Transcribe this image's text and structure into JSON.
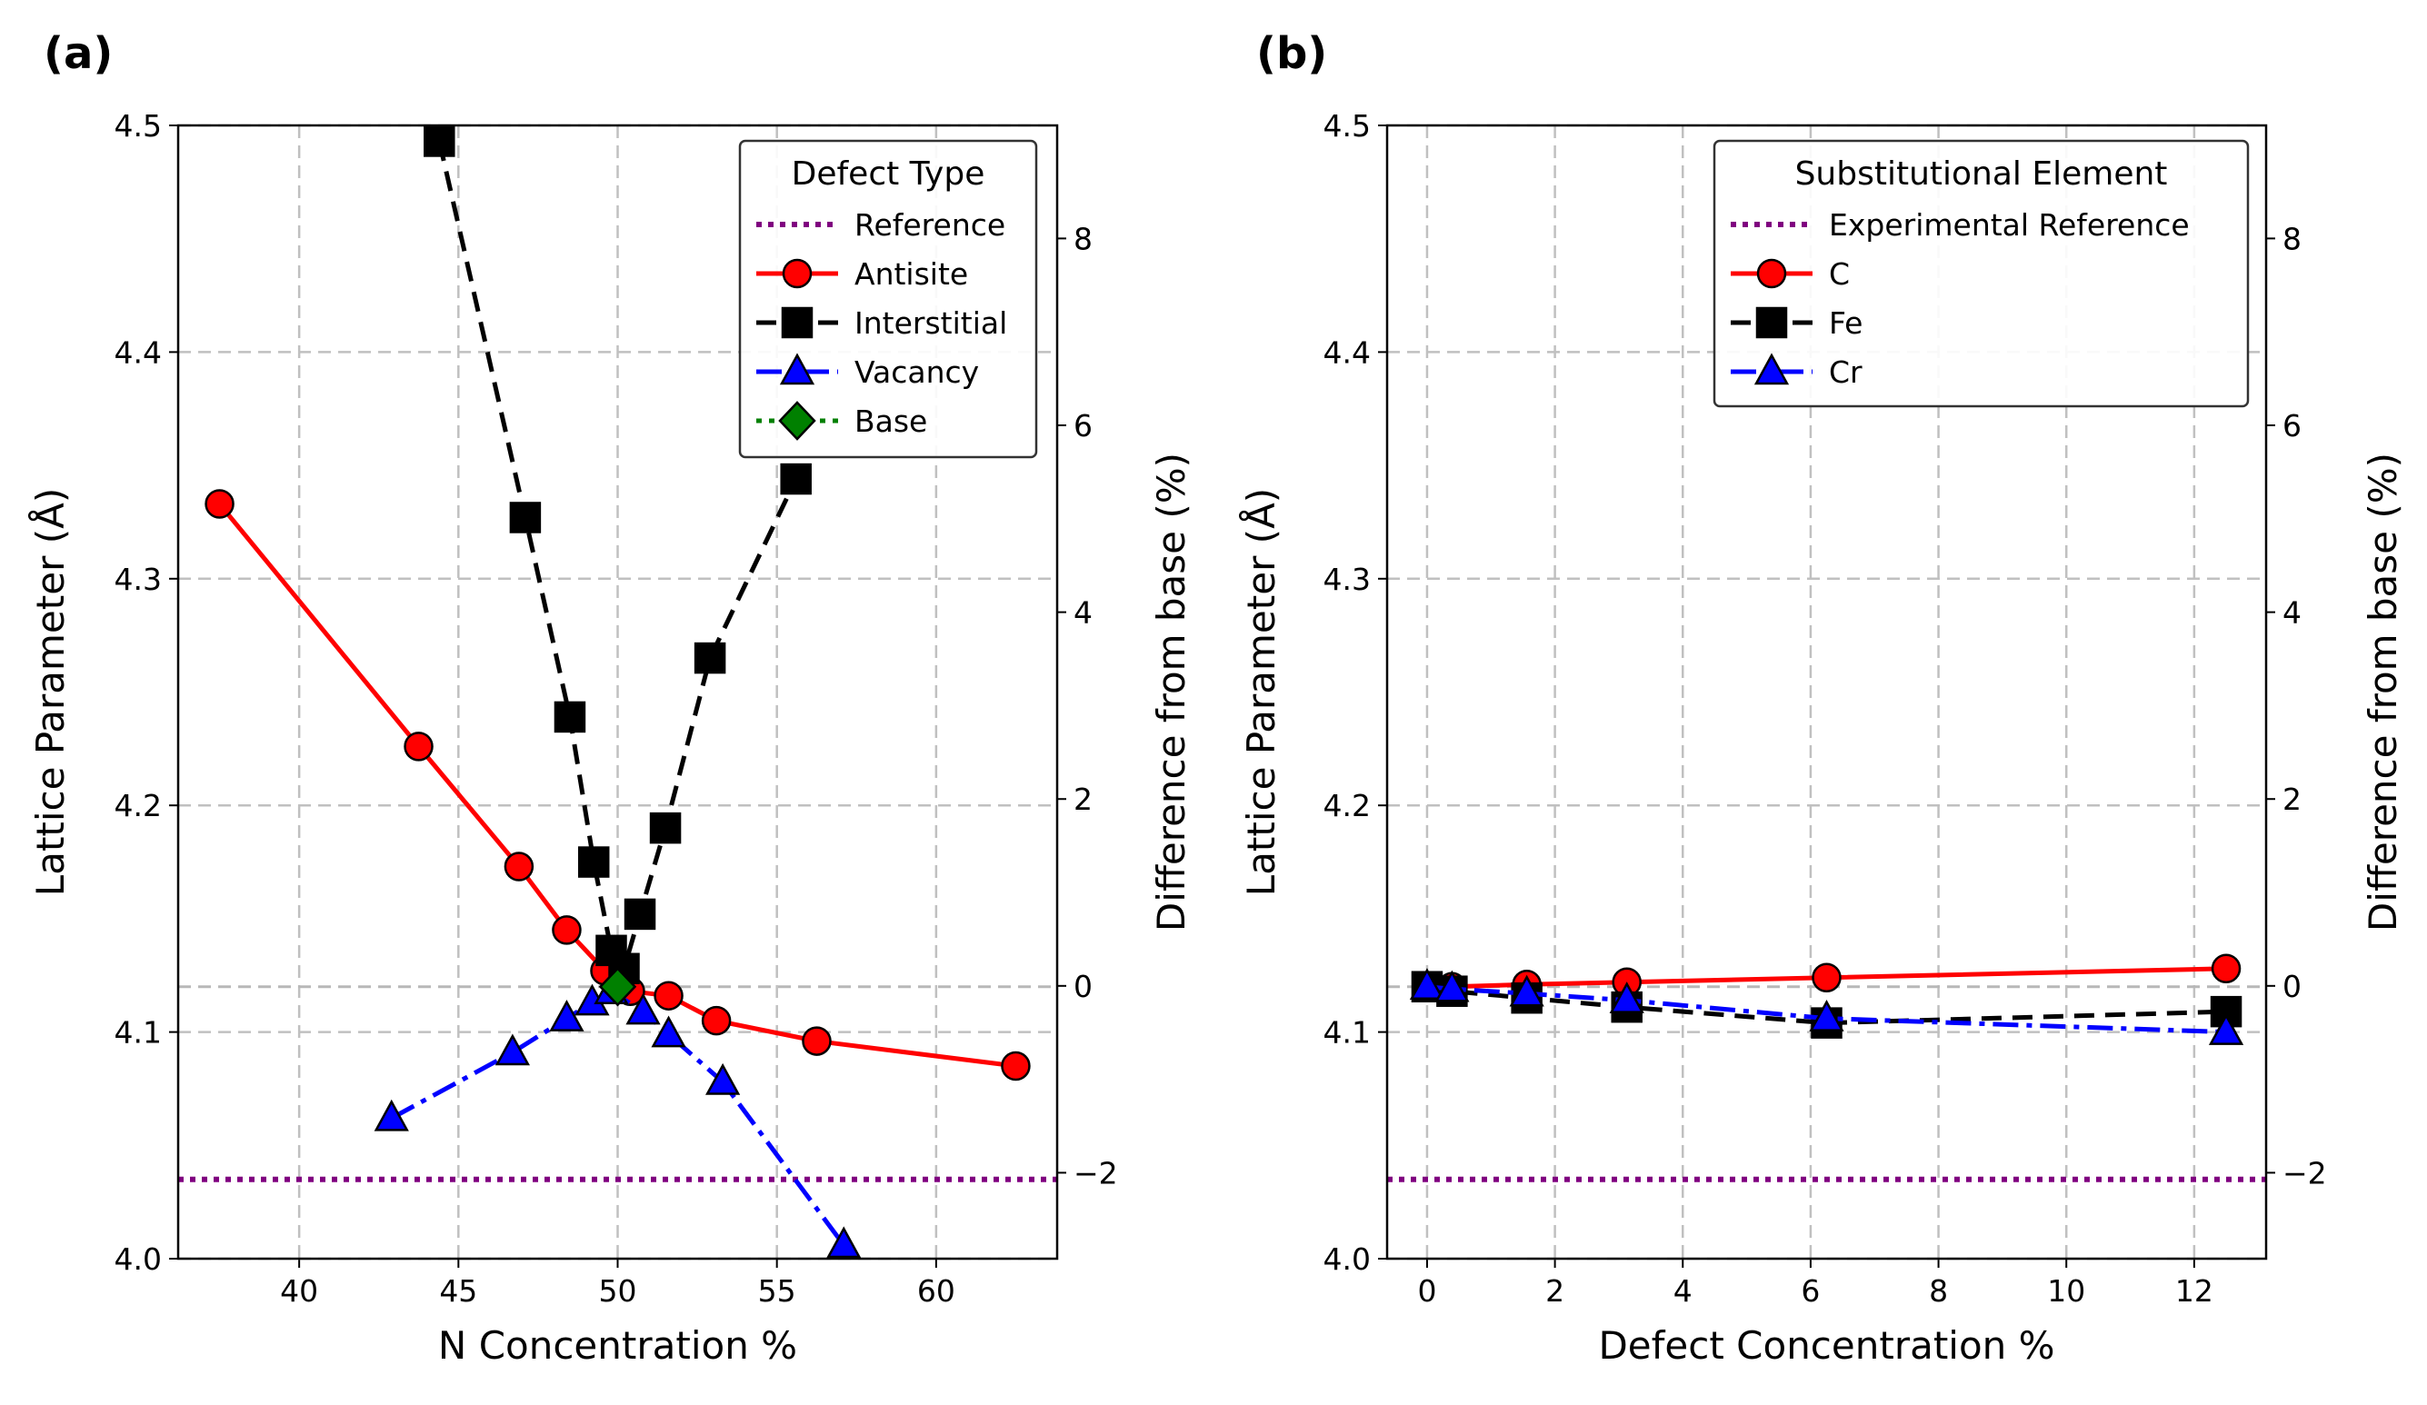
{
  "chart_data": [
    {
      "panel_label": "(a)",
      "type": "line",
      "xlabel": "N Concentration %",
      "ylabel": "Lattice Parameter (Å)",
      "y2label": "Difference from base (%)",
      "xlim": [
        36.2,
        63.8
      ],
      "ylim": [
        4.0,
        4.5
      ],
      "y2lim": [
        -2.92,
        9.21
      ],
      "xticks": [
        "40",
        "45",
        "50",
        "55",
        "60"
      ],
      "yticks": [
        "4.0",
        "4.1",
        "4.2",
        "4.3",
        "4.4",
        "4.5"
      ],
      "y2ticks": [
        "−2",
        "0",
        "2",
        "4",
        "6",
        "8"
      ],
      "grid": true,
      "legend": {
        "title": "Defect Type",
        "placement": "top-right",
        "entries": [
          "Reference",
          "Antisite",
          "Interstitial",
          "Vacancy",
          "Base"
        ]
      },
      "reference_line": {
        "name": "Reference",
        "y": 4.035,
        "color": "#800080"
      },
      "baseline": {
        "y": 4.12
      },
      "series": [
        {
          "name": "Antisite",
          "color": "#ff0000",
          "marker": "circle",
          "x": [
            37.5,
            43.75,
            46.9,
            48.4,
            49.6,
            50.4,
            51.6,
            53.1,
            56.25,
            62.5
          ],
          "y": [
            4.333,
            4.226,
            4.173,
            4.145,
            4.127,
            4.118,
            4.116,
            4.105,
            4.096,
            4.085
          ]
        },
        {
          "name": "Interstitial",
          "color": "#000000",
          "marker": "square",
          "x": [
            44.4,
            47.1,
            48.5,
            49.25,
            49.8,
            50.2,
            50.7,
            51.5,
            52.9,
            55.6
          ],
          "y": [
            4.493,
            4.327,
            4.239,
            4.175,
            4.136,
            4.128,
            4.152,
            4.19,
            4.265,
            4.344
          ]
        },
        {
          "name": "Vacancy",
          "color": "#0000ff",
          "marker": "triangle",
          "x": [
            42.9,
            46.7,
            48.4,
            49.2,
            49.8,
            50.8,
            51.6,
            53.3,
            57.1
          ],
          "y": [
            4.062,
            4.091,
            4.106,
            4.113,
            4.118,
            4.109,
            4.099,
            4.078,
            4.006
          ]
        },
        {
          "name": "Base",
          "color": "#008000",
          "marker": "diamond",
          "x": [
            50.0
          ],
          "y": [
            4.12
          ]
        }
      ]
    },
    {
      "panel_label": "(b)",
      "type": "line",
      "xlabel": "Defect Concentration %",
      "ylabel": "Lattice Parameter (Å)",
      "y2label": "Difference from base (%)",
      "xlim": [
        -0.625,
        13.125
      ],
      "ylim": [
        4.0,
        4.5
      ],
      "y2lim": [
        -2.92,
        9.21
      ],
      "xticks": [
        "0",
        "2",
        "4",
        "6",
        "8",
        "10",
        "12"
      ],
      "yticks": [
        "4.0",
        "4.1",
        "4.2",
        "4.3",
        "4.4",
        "4.5"
      ],
      "y2ticks": [
        "−2",
        "0",
        "2",
        "4",
        "6",
        "8"
      ],
      "grid": true,
      "legend": {
        "title": "Substitutional Element",
        "placement": "top-right",
        "entries": [
          "Experimental Reference",
          "C",
          "Fe",
          "Cr"
        ]
      },
      "reference_line": {
        "name": "Experimental Reference",
        "y": 4.035,
        "color": "#800080"
      },
      "baseline": {
        "y": 4.12
      },
      "series": [
        {
          "name": "C",
          "color": "#ff0000",
          "marker": "circle",
          "x": [
            0,
            0.39,
            1.56,
            3.125,
            6.25,
            12.5
          ],
          "y": [
            4.12,
            4.12,
            4.121,
            4.122,
            4.124,
            4.128
          ]
        },
        {
          "name": "Fe",
          "color": "#000000",
          "marker": "square",
          "x": [
            0,
            0.39,
            1.56,
            3.125,
            6.25,
            12.5
          ],
          "y": [
            4.12,
            4.118,
            4.115,
            4.111,
            4.104,
            4.109
          ]
        },
        {
          "name": "Cr",
          "color": "#0000ff",
          "marker": "triangle",
          "x": [
            0,
            0.39,
            1.56,
            3.125,
            6.25,
            12.5
          ],
          "y": [
            4.12,
            4.119,
            4.117,
            4.114,
            4.106,
            4.1
          ]
        }
      ]
    }
  ]
}
